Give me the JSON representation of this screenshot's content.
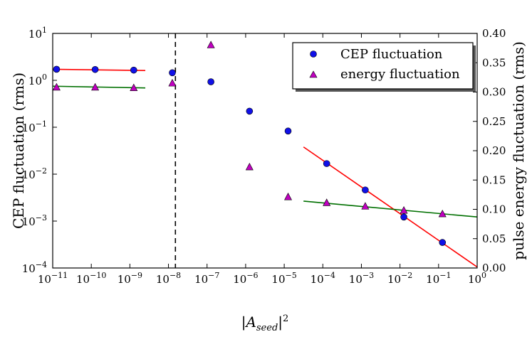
{
  "chart_data": {
    "type": "scatter",
    "title": "",
    "xlabel": "|A_seed|²",
    "xlabel_parts": {
      "prefix": "|",
      "main": "A",
      "subscript": "seed",
      "suffix": "|",
      "superscript": "2"
    },
    "ylabel_left": "CEP fluctuation (rms)",
    "ylabel_right": "pulse energy fluctuation (rms)",
    "x_scale": "log",
    "x_range_exponents": [
      -11,
      0
    ],
    "y_left_scale": "log",
    "y_left_range_exponents": [
      -4,
      1
    ],
    "y_right_scale": "linear",
    "y_right_range": [
      0.0,
      0.4
    ],
    "x_ticks": [
      {
        "value_exp": -11,
        "base": "10",
        "exp": "−11"
      },
      {
        "value_exp": -10,
        "base": "10",
        "exp": "−10"
      },
      {
        "value_exp": -9,
        "base": "10",
        "exp": "−9"
      },
      {
        "value_exp": -8,
        "base": "10",
        "exp": "−8"
      },
      {
        "value_exp": -7,
        "base": "10",
        "exp": "−7"
      },
      {
        "value_exp": -6,
        "base": "10",
        "exp": "−6"
      },
      {
        "value_exp": -5,
        "base": "10",
        "exp": "−5"
      },
      {
        "value_exp": -4,
        "base": "10",
        "exp": "−4"
      },
      {
        "value_exp": -3,
        "base": "10",
        "exp": "−3"
      },
      {
        "value_exp": -2,
        "base": "10",
        "exp": "−2"
      },
      {
        "value_exp": -1,
        "base": "10",
        "exp": "−1"
      },
      {
        "value_exp": 0,
        "base": "10",
        "exp": "0"
      }
    ],
    "y_left_ticks": [
      {
        "value_exp": -4,
        "base": "10",
        "exp": "−4"
      },
      {
        "value_exp": -3,
        "base": "10",
        "exp": "−3"
      },
      {
        "value_exp": -2,
        "base": "10",
        "exp": "−2"
      },
      {
        "value_exp": -1,
        "base": "10",
        "exp": "−1"
      },
      {
        "value_exp": 0,
        "base": "10",
        "exp": "0"
      },
      {
        "value_exp": 1,
        "base": "10",
        "exp": "1"
      }
    ],
    "y_right_ticks": [
      "0.00",
      "0.05",
      "0.10",
      "0.15",
      "0.20",
      "0.25",
      "0.30",
      "0.35",
      "0.40"
    ],
    "threshold_line_x_exp": -7.82,
    "series": [
      {
        "name": "CEP fluctuation",
        "axis": "left",
        "marker": "circle",
        "color": "#1010e8",
        "points": [
          {
            "x_exp": -10.9,
            "y": 1.72
          },
          {
            "x_exp": -9.9,
            "y": 1.7
          },
          {
            "x_exp": -8.9,
            "y": 1.65
          },
          {
            "x_exp": -7.9,
            "y": 1.45
          },
          {
            "x_exp": -6.9,
            "y": 0.93
          },
          {
            "x_exp": -5.9,
            "y": 0.22
          },
          {
            "x_exp": -4.9,
            "y": 0.083
          },
          {
            "x_exp": -3.9,
            "y": 0.0168
          },
          {
            "x_exp": -2.9,
            "y": 0.0046
          },
          {
            "x_exp": -1.9,
            "y": 0.00122
          },
          {
            "x_exp": -0.9,
            "y": 0.00035
          }
        ]
      },
      {
        "name": "energy fluctuation",
        "axis": "right",
        "marker": "triangle",
        "color": "#c000c0",
        "points": [
          {
            "x_exp": -10.9,
            "y": 0.308
          },
          {
            "x_exp": -9.9,
            "y": 0.308
          },
          {
            "x_exp": -8.9,
            "y": 0.307
          },
          {
            "x_exp": -7.9,
            "y": 0.315
          },
          {
            "x_exp": -6.9,
            "y": 0.38
          },
          {
            "x_exp": -5.9,
            "y": 0.172
          },
          {
            "x_exp": -4.9,
            "y": 0.121
          },
          {
            "x_exp": -3.9,
            "y": 0.111
          },
          {
            "x_exp": -2.9,
            "y": 0.105
          },
          {
            "x_exp": -1.9,
            "y": 0.098
          },
          {
            "x_exp": -0.9,
            "y": 0.092
          }
        ]
      }
    ],
    "fit_lines": [
      {
        "name": "CEP fit plateau",
        "axis": "left",
        "color": "#ff0000",
        "x_exp": [
          -11,
          -8.6
        ],
        "y": [
          1.72,
          1.62
        ]
      },
      {
        "name": "CEP fit slope",
        "axis": "left",
        "color": "#ff0000",
        "x_exp": [
          -4.5,
          0
        ],
        "y": [
          0.038,
          0.000105
        ]
      },
      {
        "name": "energy fit plateau",
        "axis": "right",
        "color": "#007000",
        "x_exp": [
          -11,
          -8.6
        ],
        "y": [
          0.31,
          0.307
        ]
      },
      {
        "name": "energy fit slope",
        "axis": "right",
        "color": "#007000",
        "x_exp": [
          -4.5,
          0
        ],
        "y": [
          0.114,
          0.087
        ]
      }
    ],
    "legend": {
      "position": "top-right",
      "entries": [
        "CEP fluctuation",
        "energy fluctuation"
      ]
    }
  }
}
